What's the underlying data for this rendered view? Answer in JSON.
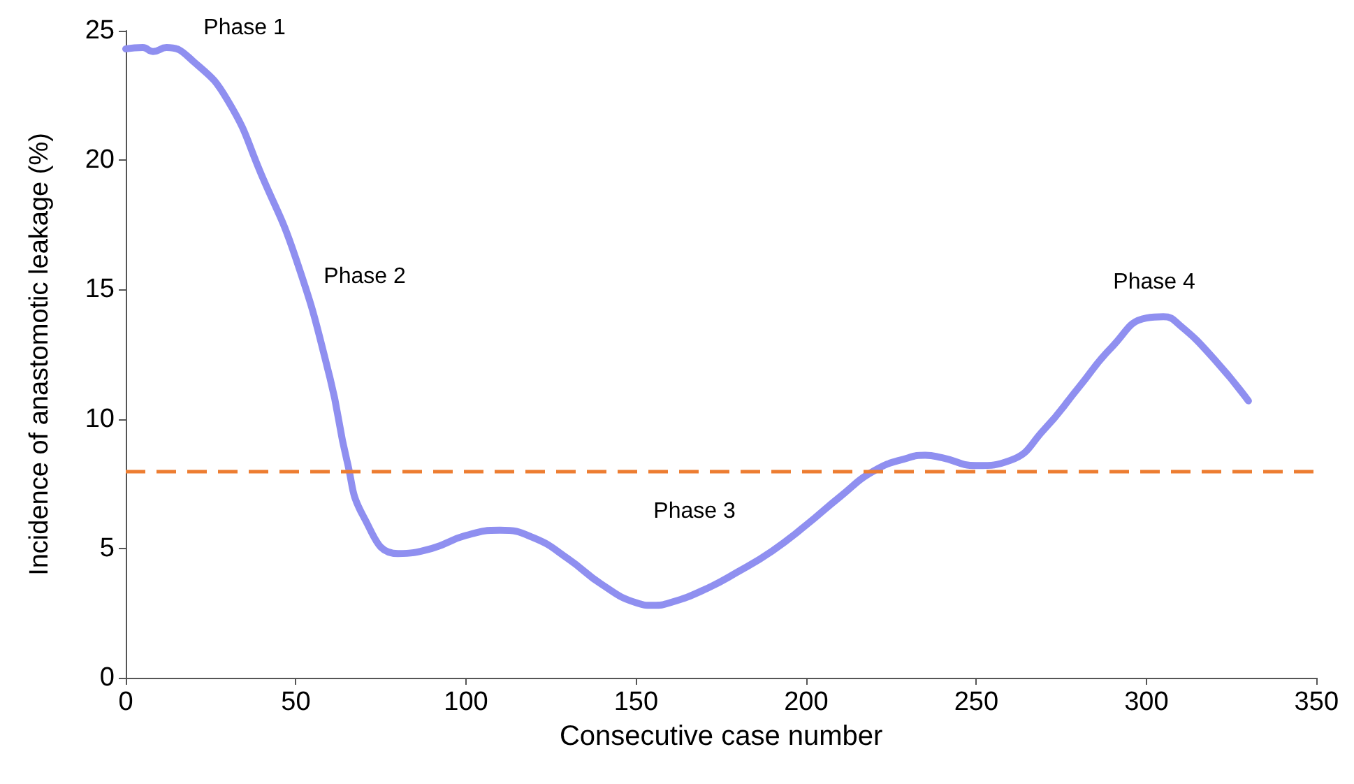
{
  "chart_data": {
    "type": "line",
    "xlabel": "Consecutive case number",
    "ylabel": "Incidence of anastomotic leakage (%)",
    "xlim": [
      0,
      350
    ],
    "xticks": [
      0,
      50,
      100,
      150,
      200,
      250,
      300,
      350
    ],
    "ylim": [
      0,
      25
    ],
    "yticks": [
      0,
      5,
      10,
      15,
      20,
      25
    ],
    "grid": false,
    "marker": "none",
    "line_style": "solid",
    "series": [
      {
        "color": "#8f8ff0",
        "x": [
          0,
          5,
          8,
          12,
          20,
          30,
          40,
          50,
          60,
          65,
          70,
          80,
          90,
          100,
          110,
          120,
          130,
          140,
          150,
          155,
          160,
          170,
          180,
          190,
          200,
          210,
          220,
          230,
          235,
          240,
          250,
          260,
          270,
          280,
          290,
          300,
          305,
          310,
          320,
          330
        ],
        "values": [
          24.3,
          24.35,
          24.2,
          24.35,
          23.8,
          22.3,
          19.4,
          16.2,
          11.6,
          8.4,
          6.2,
          4.8,
          5.0,
          5.5,
          5.7,
          5.4,
          4.6,
          3.6,
          2.9,
          2.8,
          2.9,
          3.4,
          4.1,
          4.9,
          5.9,
          7.0,
          8.0,
          8.5,
          8.6,
          8.5,
          8.2,
          8.4,
          9.6,
          11.2,
          12.8,
          13.9,
          13.95,
          13.6,
          12.3,
          10.7
        ]
      }
    ],
    "ref_lines": [
      {
        "axis": "y",
        "value": 8,
        "color": "#ed7d31",
        "line_style": "dashed"
      }
    ],
    "annotations": [
      "Phase 1",
      "Phase 2",
      "Phase 3",
      "Phase 4"
    ]
  }
}
